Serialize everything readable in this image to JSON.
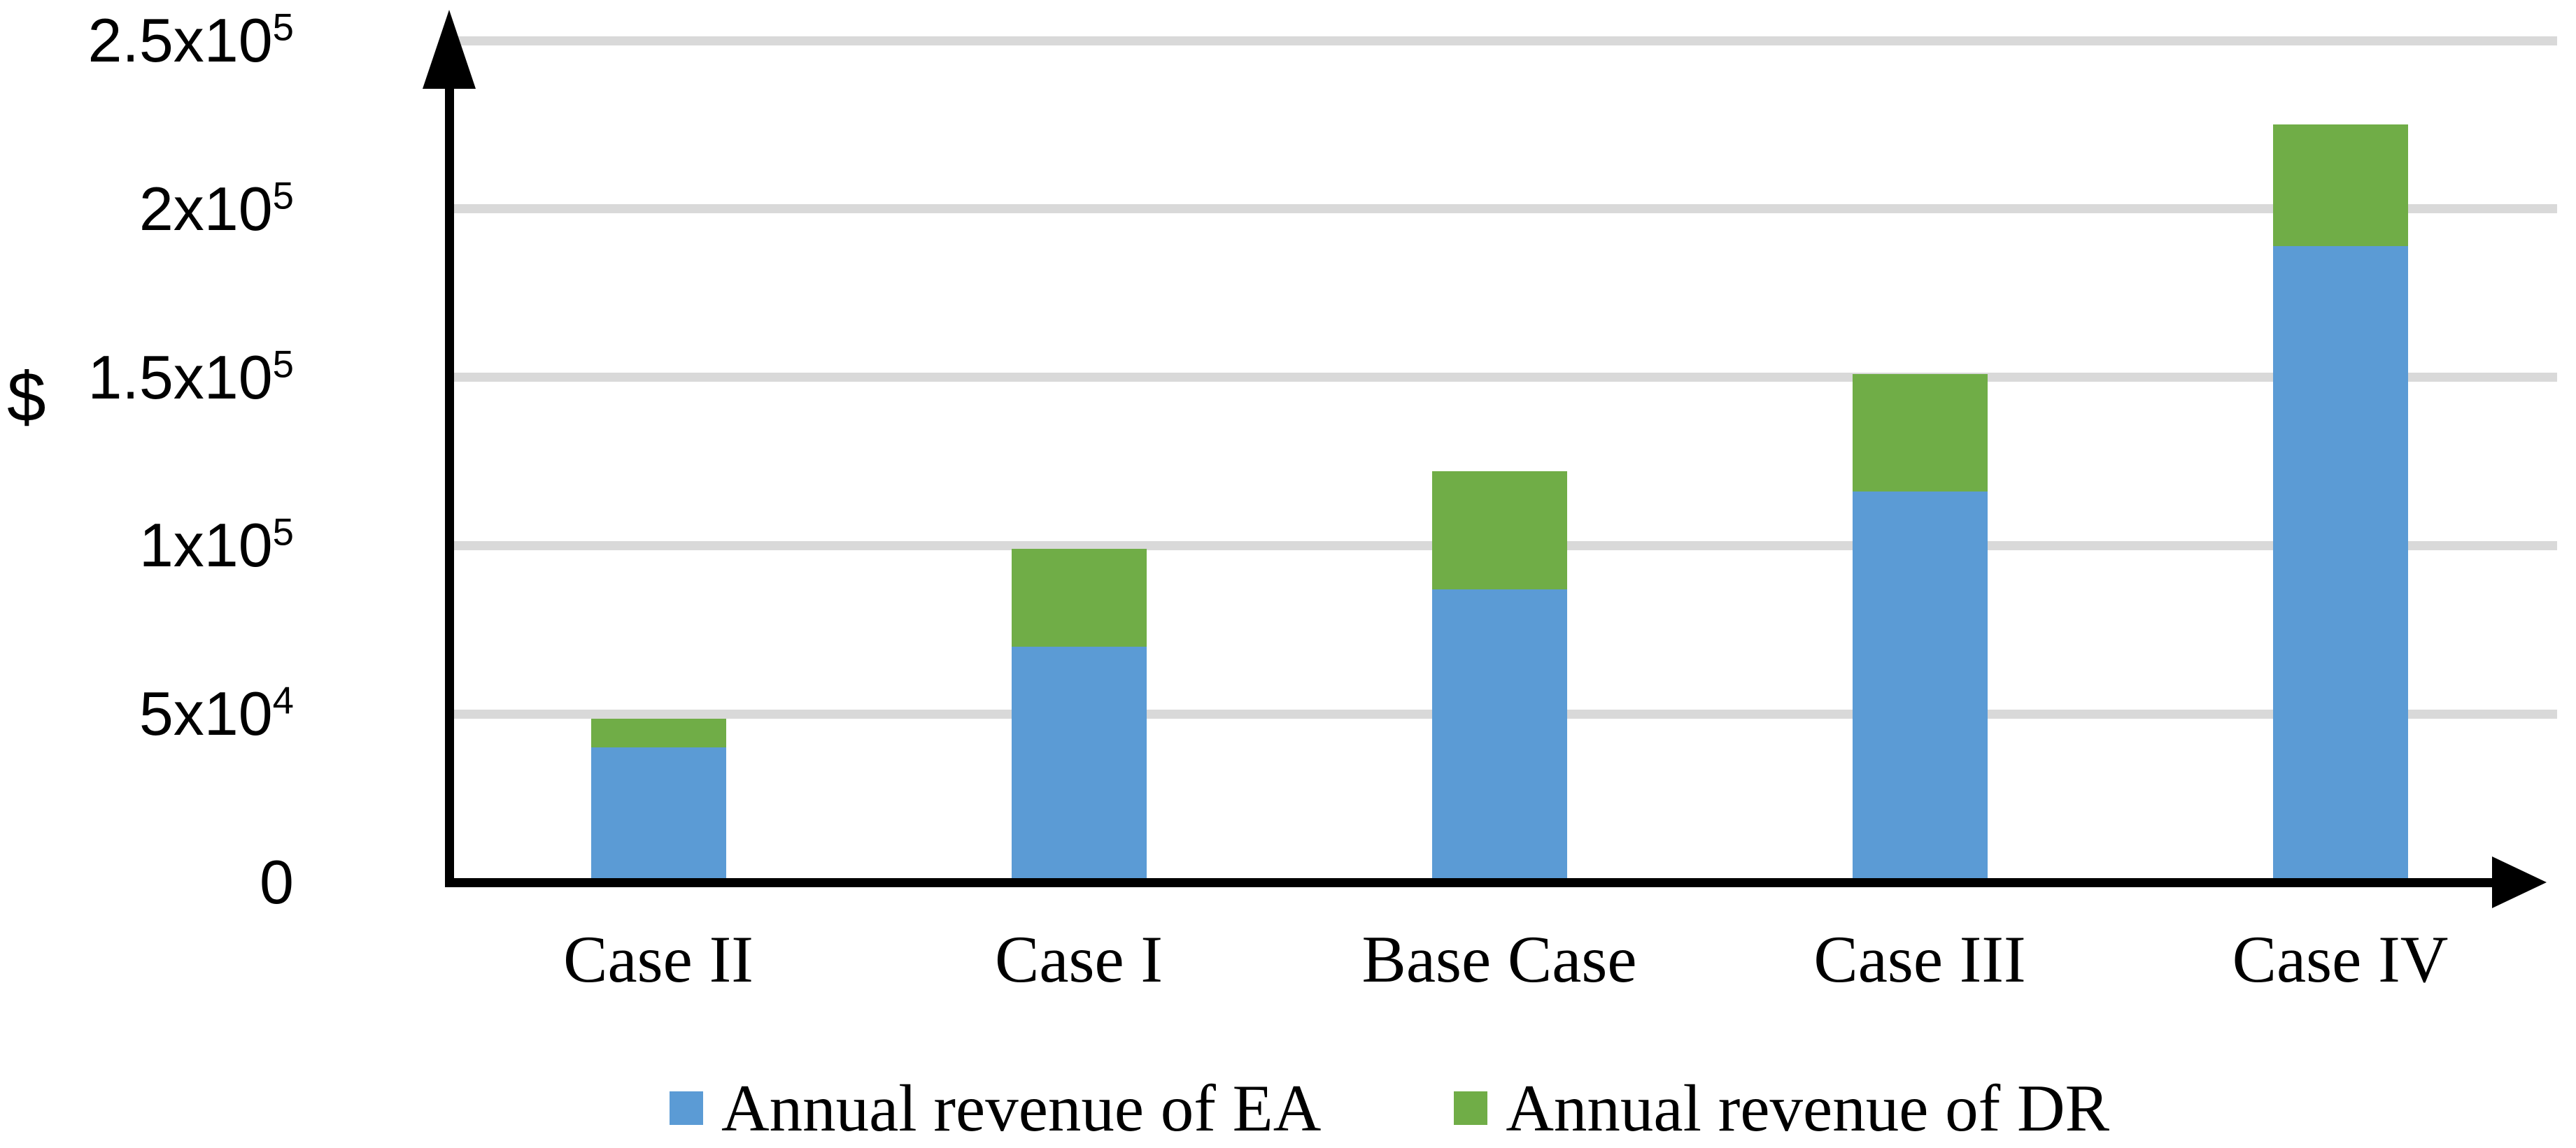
{
  "chart_data": {
    "type": "bar",
    "stacked": true,
    "categories": [
      "Case II",
      "Case I",
      "Base Case",
      "Case III",
      "Case IV"
    ],
    "series": [
      {
        "name": "Annual revenue of EA",
        "color": "#5B9BD5",
        "values": [
          40000,
          70000,
          87000,
          116000,
          189000
        ]
      },
      {
        "name": "Annual revenue of DR",
        "color": "#70AD47",
        "values": [
          8500,
          29000,
          35000,
          35000,
          36000
        ]
      }
    ],
    "stack_totals": [
      48500,
      99000,
      122000,
      151000,
      225000
    ],
    "ylabel": "$",
    "xlabel": "",
    "title": "",
    "ylim": [
      0,
      260000
    ],
    "ytick_interval": 50000,
    "grid": true,
    "legend_position": "bottom",
    "yticks": [
      {
        "value": 0,
        "base": "0",
        "sup": ""
      },
      {
        "value": 50000,
        "base": "5x10",
        "sup": "4"
      },
      {
        "value": 100000,
        "base": "1x10",
        "sup": "5"
      },
      {
        "value": 150000,
        "base": "1.5x10",
        "sup": "5"
      },
      {
        "value": 200000,
        "base": "2x10",
        "sup": "5"
      },
      {
        "value": 250000,
        "base": "2.5x10",
        "sup": "5"
      }
    ]
  },
  "colors": {
    "background": "#FFFFFF",
    "axis": "#000000",
    "gridline": "#D9D9D9",
    "text": "#000000",
    "series_ea": "#5B9BD5",
    "series_dr": "#70AD47"
  }
}
